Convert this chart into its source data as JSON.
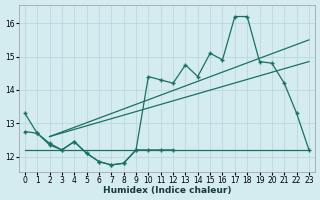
{
  "xlabel": "Humidex (Indice chaleur)",
  "background_color": "#d4ecf0",
  "grid_color": "#b8d4d8",
  "line_color": "#1a7060",
  "ylim": [
    11.55,
    16.55
  ],
  "xlim": [
    -0.5,
    23.5
  ],
  "yticks": [
    12,
    13,
    14,
    15,
    16
  ],
  "xticks": [
    0,
    1,
    2,
    3,
    4,
    5,
    6,
    7,
    8,
    9,
    10,
    11,
    12,
    13,
    14,
    15,
    16,
    17,
    18,
    19,
    20,
    21,
    22,
    23
  ],
  "curve_top_x": [
    0,
    1,
    2,
    3,
    4,
    5,
    6,
    7,
    8,
    9,
    10,
    11,
    12,
    13,
    14,
    15,
    16,
    17,
    18,
    19,
    20,
    21,
    22,
    23
  ],
  "curve_top_y": [
    13.3,
    12.7,
    12.4,
    12.2,
    12.45,
    12.1,
    11.85,
    11.75,
    11.8,
    12.2,
    14.4,
    14.3,
    14.2,
    14.75,
    14.4,
    15.1,
    14.9,
    16.2,
    16.2,
    14.85,
    14.8,
    14.2,
    13.3,
    12.2
  ],
  "curve_bot_x": [
    0,
    1,
    2,
    3,
    4,
    5,
    6,
    7,
    8,
    9,
    10,
    11,
    12
  ],
  "curve_bot_y": [
    12.75,
    12.7,
    12.35,
    12.2,
    12.45,
    12.1,
    11.85,
    11.75,
    11.8,
    12.2,
    12.2,
    12.2,
    12.2
  ],
  "trend1_x": [
    2,
    23
  ],
  "trend1_y": [
    12.6,
    15.5
  ],
  "trend2_x": [
    2,
    23
  ],
  "trend2_y": [
    12.6,
    14.85
  ],
  "hline_y": 12.2,
  "hline_x1": 0,
  "hline_x2": 23
}
